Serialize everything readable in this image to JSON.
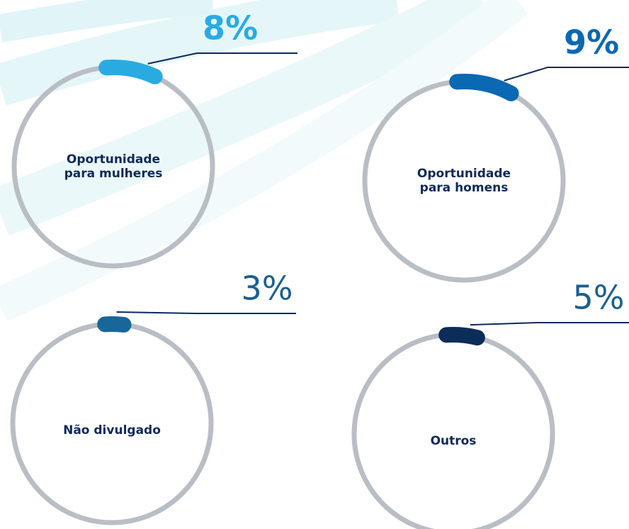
{
  "chart_data": [
    {
      "type": "gauge",
      "label": [
        "Oportunidade",
        "para mulheres"
      ],
      "values": [
        8
      ],
      "value_labels": [
        "8%"
      ],
      "color": "#29abe2",
      "bold": true
    },
    {
      "type": "gauge",
      "label": [
        "Oportunidade",
        "para homens"
      ],
      "values": [
        9
      ],
      "value_labels": [
        "9%"
      ],
      "color": "#0b68b3",
      "bold": true
    },
    {
      "type": "gauge",
      "label": [
        "Não divulgado"
      ],
      "values": [
        3
      ],
      "value_labels": [
        "3%"
      ],
      "color": "#17679b",
      "bold": false
    },
    {
      "type": "gauge",
      "label": [
        "Outros"
      ],
      "values": [
        5
      ],
      "value_labels": [
        "5%"
      ],
      "color": "#0c2c5a",
      "bold": false
    }
  ]
}
